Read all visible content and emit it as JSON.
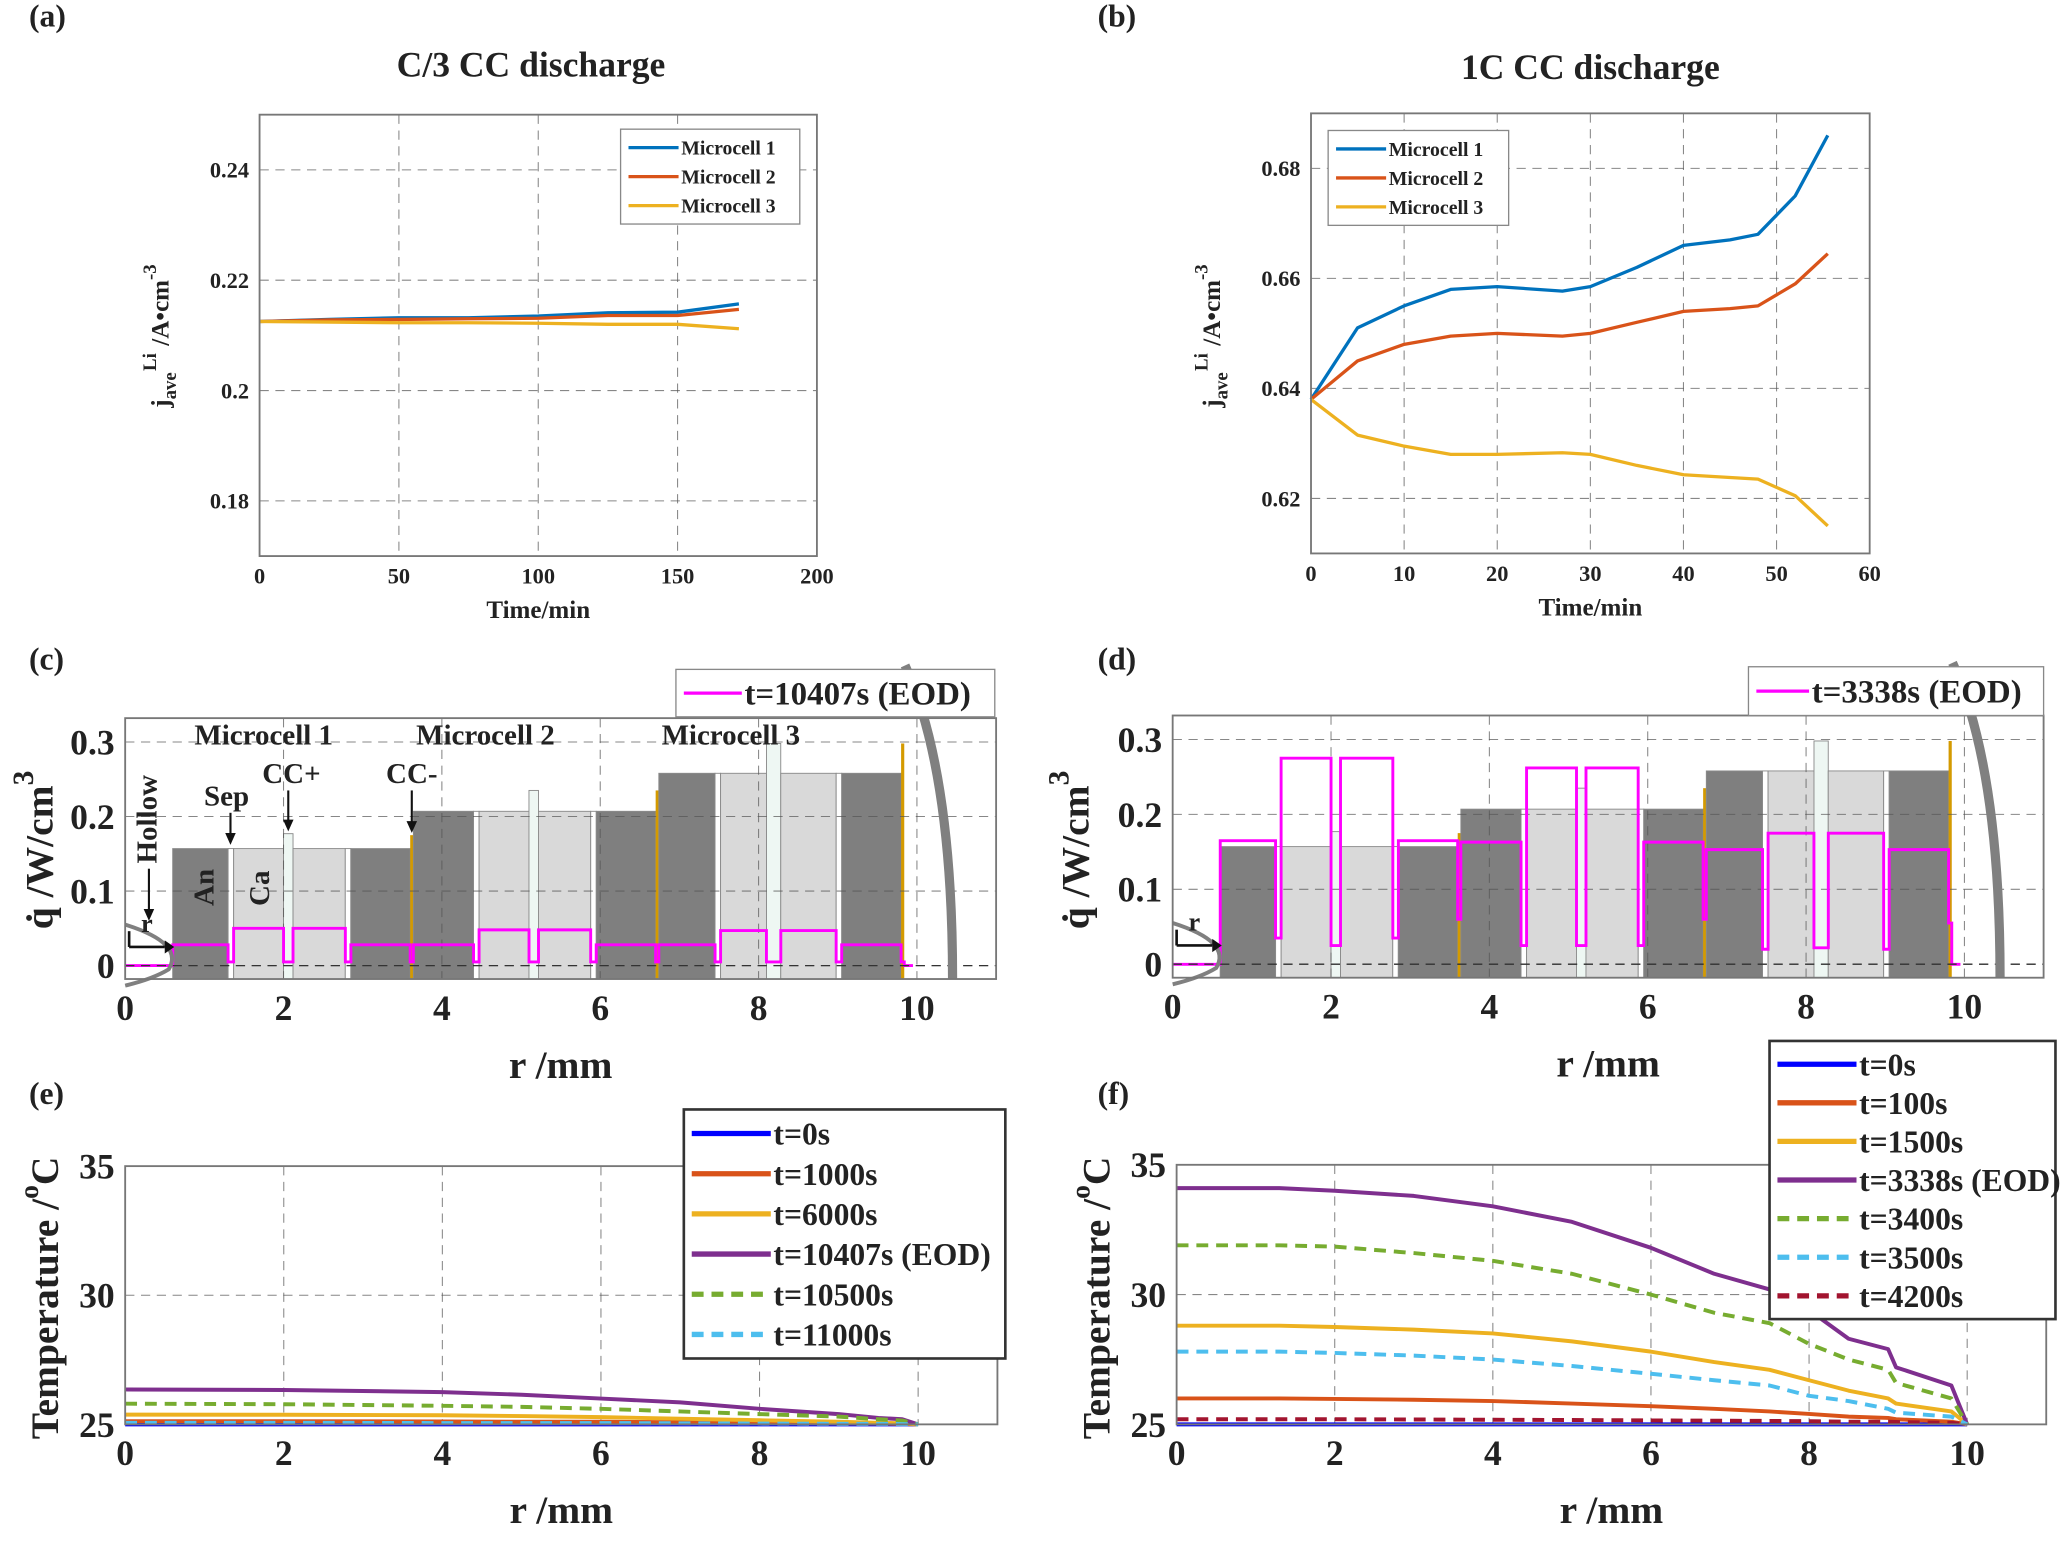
{
  "panels": {
    "a": {
      "label": "(a)",
      "title": "C/3 CC discharge",
      "ylabel": {
        "main": "j",
        "sup": "Li",
        "sub": "ave",
        "unit": "/A•cm",
        "unit_sup": "-3"
      },
      "xlabel": "Time/min"
    },
    "b": {
      "label": "(b)",
      "title": "1C CC discharge",
      "ylabel": {
        "main": "j",
        "sup": "Li",
        "sub": "ave",
        "unit": "/A•cm",
        "unit_sup": "-3"
      },
      "xlabel": "Time/min"
    },
    "c": {
      "label": "(c)",
      "ylabel": {
        "main": "q̇ /W/cm",
        "unit_sup": "3"
      },
      "xlabel": "r /mm",
      "annotations": {
        "hollow": "Hollow",
        "sep": "Sep",
        "cc_pos": "CC+",
        "cc_neg": "CC-",
        "anode": "An",
        "cathode": "Ca",
        "r": "r",
        "microcells": [
          "Microcell  1",
          "Microcell  2",
          "Microcell  3"
        ]
      }
    },
    "d": {
      "label": "(d)",
      "ylabel": {
        "main": "q̇ /W/cm",
        "unit_sup": "3"
      },
      "xlabel": "r /mm",
      "annotations": {
        "r": "r"
      }
    },
    "e": {
      "label": "(e)",
      "ylabel": {
        "main": "Temperature /",
        "sup": "o",
        "unit": "C"
      },
      "xlabel": "r /mm"
    },
    "f": {
      "label": "(f)",
      "ylabel": {
        "main": "Temperature /",
        "sup": "o",
        "unit": "C"
      },
      "xlabel": "r /mm"
    }
  },
  "chart_data": [
    {
      "panel": "a",
      "type": "line",
      "title": "C/3 CC discharge",
      "xlabel": "Time/min",
      "ylabel": "j_ave^Li /A•cm^-3",
      "xlim": [
        0,
        200
      ],
      "ylim": [
        0.17,
        0.25
      ],
      "xticks": [
        "0",
        "50",
        "100",
        "150",
        "200"
      ],
      "xtick_values": [
        0,
        50,
        100,
        150,
        200
      ],
      "yticks": [
        "0.18",
        "0.2",
        "0.22",
        "0.24"
      ],
      "ytick_values": [
        0.18,
        0.2,
        0.22,
        0.24
      ],
      "grid": true,
      "legend": "top-right",
      "x": [
        0,
        25,
        50,
        75,
        100,
        125,
        150,
        172
      ],
      "series": [
        {
          "name": "Microcell 1",
          "color": "#0072BD",
          "values": [
            0.2125,
            0.2129,
            0.2132,
            0.2132,
            0.2135,
            0.2141,
            0.2142,
            0.2157
          ]
        },
        {
          "name": "Microcell 2",
          "color": "#D95319",
          "values": [
            0.2125,
            0.2128,
            0.2129,
            0.213,
            0.2131,
            0.2136,
            0.2136,
            0.2147
          ]
        },
        {
          "name": "Microcell 3",
          "color": "#EDB120",
          "values": [
            0.2125,
            0.2124,
            0.2123,
            0.2123,
            0.2122,
            0.212,
            0.212,
            0.2112
          ]
        }
      ]
    },
    {
      "panel": "b",
      "type": "line",
      "title": "1C CC discharge",
      "xlabel": "Time/min",
      "ylabel": "j_ave^Li /A•cm^-3",
      "xlim": [
        0,
        60
      ],
      "ylim": [
        0.61,
        0.69
      ],
      "xticks": [
        "0",
        "10",
        "20",
        "30",
        "40",
        "50",
        "60"
      ],
      "xtick_values": [
        0,
        10,
        20,
        30,
        40,
        50,
        60
      ],
      "yticks": [
        "0.62",
        "0.64",
        "0.66",
        "0.68"
      ],
      "ytick_values": [
        0.62,
        0.64,
        0.66,
        0.68
      ],
      "grid": true,
      "legend": "top-left",
      "x": [
        0,
        5,
        10,
        15,
        20,
        27,
        30,
        35,
        40,
        45,
        48,
        52,
        55.5
      ],
      "series": [
        {
          "name": "Microcell 1",
          "color": "#0072BD",
          "values": [
            0.638,
            0.651,
            0.655,
            0.658,
            0.6585,
            0.6577,
            0.6585,
            0.662,
            0.666,
            0.667,
            0.668,
            0.675,
            0.686
          ]
        },
        {
          "name": "Microcell 2",
          "color": "#D95319",
          "values": [
            0.638,
            0.645,
            0.648,
            0.6495,
            0.65,
            0.6495,
            0.65,
            0.652,
            0.654,
            0.6545,
            0.655,
            0.659,
            0.6645
          ]
        },
        {
          "name": "Microcell 3",
          "color": "#EDB120",
          "values": [
            0.638,
            0.6315,
            0.6295,
            0.628,
            0.628,
            0.6283,
            0.628,
            0.626,
            0.6243,
            0.6238,
            0.6235,
            0.6205,
            0.615
          ]
        }
      ]
    },
    {
      "panel": "c",
      "type": "bar",
      "xlabel": "r /mm",
      "ylabel": "q̇ /W/cm^3",
      "xlim": [
        0,
        11
      ],
      "ylim": [
        -0.018,
        0.332
      ],
      "xticks": [
        "0",
        "2",
        "4",
        "6",
        "8",
        "10"
      ],
      "xtick_values": [
        0,
        2,
        4,
        6,
        8,
        10
      ],
      "yticks": [
        "0",
        "0.1",
        "0.2",
        "0.3"
      ],
      "ytick_values": [
        0,
        0.1,
        0.2,
        0.3
      ],
      "grid": true,
      "legend": "top-right",
      "region_colors": {
        "anode": "#7f7f7f",
        "separator": "#ffffff",
        "cathode": "#d9d9d9",
        "cc_pos": "#eef7f3",
        "cc_neg": "#d49a00"
      },
      "regions": "shared",
      "line": {
        "name": "t=10407s (EOD)",
        "color": "#FF00FF",
        "start": [
          0,
          0.6
        ],
        "end": [
          9.84,
          9.95
        ],
        "values": [
          0.028,
          0.005,
          0.05,
          0.005,
          0.05,
          0.005,
          0.028,
          0.005,
          0.028,
          0.005,
          0.048,
          0.005,
          0.048,
          0.005,
          0.028,
          0.005,
          0.028,
          0.005,
          0.047,
          0.005,
          0.047,
          0.005,
          0.028,
          0.005
        ]
      }
    },
    {
      "panel": "d",
      "type": "bar",
      "xlabel": "r /mm",
      "ylabel": "q̇ /W/cm^3",
      "xlim": [
        0,
        11
      ],
      "ylim": [
        -0.018,
        0.332
      ],
      "xticks": [
        "0",
        "2",
        "4",
        "6",
        "8",
        "10"
      ],
      "xtick_values": [
        0,
        2,
        4,
        6,
        8,
        10
      ],
      "yticks": [
        "0",
        "0.1",
        "0.2",
        "0.3"
      ],
      "ytick_values": [
        0,
        0.1,
        0.2,
        0.3
      ],
      "grid": true,
      "legend": "top-right",
      "regions": "shared",
      "line": {
        "name": "t=3338s (EOD)",
        "color": "#FF00FF",
        "start": [
          0,
          0.6
        ],
        "end": [
          9.84,
          9.95
        ],
        "values": [
          0.165,
          0.035,
          0.275,
          0.025,
          0.275,
          0.035,
          0.165,
          0.06,
          0.163,
          0.025,
          0.262,
          0.025,
          0.262,
          0.025,
          0.163,
          0.06,
          0.153,
          0.02,
          0.175,
          0.022,
          0.175,
          0.02,
          0.153,
          0.055
        ]
      }
    },
    {
      "panel": "e",
      "type": "line",
      "xlabel": "r /mm",
      "ylabel": "Temperature /°C",
      "xlim": [
        0,
        11
      ],
      "ylim": [
        25,
        35
      ],
      "xticks": [
        "0",
        "2",
        "4",
        "6",
        "8",
        "10"
      ],
      "xtick_values": [
        0,
        2,
        4,
        6,
        8,
        10
      ],
      "yticks": [
        "25",
        "30",
        "35"
      ],
      "ytick_values": [
        25,
        30,
        35
      ],
      "grid": true,
      "legend": "top-right",
      "x": [
        0,
        2,
        4,
        5,
        6,
        7,
        8,
        9,
        9.5,
        9.8,
        10
      ],
      "series": [
        {
          "name": "t=0s",
          "color": "#0000FF",
          "dash": false,
          "values": [
            25,
            25,
            25,
            25,
            25,
            25,
            25,
            25,
            25,
            25,
            25
          ]
        },
        {
          "name": "t=1000s",
          "color": "#D95319",
          "dash": false,
          "values": [
            25.12,
            25.12,
            25.11,
            25.1,
            25.1,
            25.08,
            25.06,
            25.04,
            25.03,
            25.02,
            25
          ]
        },
        {
          "name": "t=6000s",
          "color": "#EDB120",
          "dash": false,
          "values": [
            25.38,
            25.37,
            25.35,
            25.32,
            25.28,
            25.22,
            25.16,
            25.1,
            25.06,
            25.04,
            25
          ]
        },
        {
          "name": "t=10407s (EOD)",
          "color": "#7E2F8E",
          "dash": false,
          "values": [
            26.35,
            26.33,
            26.25,
            26.15,
            26.0,
            25.85,
            25.6,
            25.4,
            25.25,
            25.2,
            25
          ]
        },
        {
          "name": "t=10500s",
          "color": "#77AC30",
          "dash": true,
          "values": [
            25.8,
            25.78,
            25.72,
            25.68,
            25.6,
            25.5,
            25.4,
            25.3,
            25.2,
            25.15,
            25
          ]
        },
        {
          "name": "t=11000s",
          "color": "#4DBEEE",
          "dash": true,
          "values": [
            25.06,
            25.06,
            25.05,
            25.05,
            25.05,
            25.04,
            25.03,
            25.02,
            25.02,
            25.01,
            25
          ]
        }
      ]
    },
    {
      "panel": "f",
      "type": "line",
      "xlabel": "r /mm",
      "ylabel": "Temperature /°C",
      "xlim": [
        0,
        11
      ],
      "ylim": [
        25,
        35
      ],
      "xticks": [
        "0",
        "2",
        "4",
        "6",
        "8",
        "10"
      ],
      "xtick_values": [
        0,
        2,
        4,
        6,
        8,
        10
      ],
      "yticks": [
        "25",
        "30",
        "35"
      ],
      "ytick_values": [
        25,
        30,
        35
      ],
      "grid": true,
      "legend": "top-right",
      "x": [
        0,
        1.3,
        2,
        3,
        4,
        5,
        6,
        6.8,
        7.5,
        8,
        8.5,
        9,
        9.1,
        9.8,
        10
      ],
      "series": [
        {
          "name": "t=0s",
          "color": "#0000FF",
          "dash": false,
          "values": [
            25,
            25,
            25,
            25,
            25,
            25,
            25,
            25,
            25,
            25,
            25,
            25,
            25,
            25,
            25
          ]
        },
        {
          "name": "t=100s",
          "color": "#D95319",
          "dash": false,
          "values": [
            26.0,
            26.0,
            25.98,
            25.95,
            25.9,
            25.8,
            25.7,
            25.6,
            25.5,
            25.4,
            25.3,
            25.25,
            25.2,
            25.1,
            25
          ]
        },
        {
          "name": "t=1500s",
          "color": "#EDB120",
          "dash": false,
          "values": [
            28.8,
            28.8,
            28.75,
            28.65,
            28.5,
            28.2,
            27.8,
            27.4,
            27.1,
            26.7,
            26.3,
            26.0,
            25.8,
            25.5,
            25
          ]
        },
        {
          "name": "t=3338s (EOD)",
          "color": "#7E2F8E",
          "dash": false,
          "values": [
            34.1,
            34.1,
            34.0,
            33.8,
            33.4,
            32.8,
            31.8,
            30.8,
            30.2,
            29.4,
            28.3,
            27.9,
            27.2,
            26.5,
            25
          ]
        },
        {
          "name": "t=3400s",
          "color": "#77AC30",
          "dash": true,
          "values": [
            31.9,
            31.9,
            31.85,
            31.6,
            31.3,
            30.8,
            30.0,
            29.3,
            28.9,
            28.1,
            27.5,
            27.1,
            26.6,
            26.0,
            25
          ]
        },
        {
          "name": "t=3500s",
          "color": "#4DBEEE",
          "dash": true,
          "values": [
            27.8,
            27.8,
            27.75,
            27.65,
            27.5,
            27.25,
            26.95,
            26.7,
            26.5,
            26.1,
            25.9,
            25.6,
            25.45,
            25.3,
            25
          ]
        },
        {
          "name": "t=4200s",
          "color": "#A2142F",
          "dash": true,
          "values": [
            25.2,
            25.2,
            25.2,
            25.19,
            25.18,
            25.17,
            25.15,
            25.14,
            25.13,
            25.12,
            25.1,
            25.1,
            25.09,
            25.06,
            25
          ]
        }
      ]
    }
  ],
  "regions": [
    {
      "type": "anode",
      "x0": 0.6,
      "x1": 1.3,
      "h": 0.157
    },
    {
      "type": "separator",
      "x0": 1.3,
      "x1": 1.37,
      "h": 0.157
    },
    {
      "type": "cathode",
      "x0": 1.37,
      "x1": 2.0,
      "h": 0.157
    },
    {
      "type": "cc_pos",
      "x0": 2.0,
      "x1": 2.12,
      "h": 0.177
    },
    {
      "type": "cathode",
      "x0": 2.12,
      "x1": 2.78,
      "h": 0.157
    },
    {
      "type": "separator",
      "x0": 2.78,
      "x1": 2.85,
      "h": 0.157
    },
    {
      "type": "anode",
      "x0": 2.85,
      "x1": 3.6,
      "h": 0.157
    },
    {
      "type": "cc_neg",
      "x0": 3.6,
      "x1": 3.64,
      "h": 0.175
    },
    {
      "type": "anode",
      "x0": 3.64,
      "x1": 4.4,
      "h": 0.207
    },
    {
      "type": "separator",
      "x0": 4.4,
      "x1": 4.47,
      "h": 0.207
    },
    {
      "type": "cathode",
      "x0": 4.47,
      "x1": 5.1,
      "h": 0.207
    },
    {
      "type": "cc_pos",
      "x0": 5.1,
      "x1": 5.22,
      "h": 0.235
    },
    {
      "type": "cathode",
      "x0": 5.22,
      "x1": 5.88,
      "h": 0.207
    },
    {
      "type": "separator",
      "x0": 5.88,
      "x1": 5.95,
      "h": 0.207
    },
    {
      "type": "anode",
      "x0": 5.95,
      "x1": 6.7,
      "h": 0.207
    },
    {
      "type": "cc_neg",
      "x0": 6.7,
      "x1": 6.74,
      "h": 0.235
    },
    {
      "type": "anode",
      "x0": 6.74,
      "x1": 7.45,
      "h": 0.258
    },
    {
      "type": "separator",
      "x0": 7.45,
      "x1": 7.52,
      "h": 0.258
    },
    {
      "type": "cathode",
      "x0": 7.52,
      "x1": 8.1,
      "h": 0.258
    },
    {
      "type": "cc_pos",
      "x0": 8.1,
      "x1": 8.28,
      "h": 0.298
    },
    {
      "type": "cathode",
      "x0": 8.28,
      "x1": 8.98,
      "h": 0.258
    },
    {
      "type": "separator",
      "x0": 8.98,
      "x1": 9.05,
      "h": 0.258
    },
    {
      "type": "anode",
      "x0": 9.05,
      "x1": 9.8,
      "h": 0.258
    },
    {
      "type": "cc_neg",
      "x0": 9.8,
      "x1": 9.84,
      "h": 0.298
    }
  ]
}
